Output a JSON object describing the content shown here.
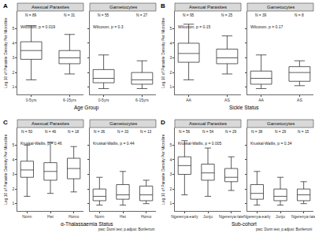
{
  "chart_data": [
    {
      "type": "box",
      "title": "A",
      "xlabel": "Age Group",
      "ylabel": "Log 10 of Parasite Density Per Microlitre",
      "ylim": [
        0.5,
        6.2
      ],
      "yticks": [
        1,
        2,
        3,
        4,
        5
      ],
      "color": "#333333",
      "panels": [
        {
          "title": "Asexual Parasites",
          "test": "Wilcoxon, p = 0.019",
          "categories": [
            "0-5yrs",
            "6-15yrs"
          ],
          "n_labels": [
            "N = 89",
            "N = 31"
          ],
          "q1": [
            2.9,
            2.6
          ],
          "median": [
            3.5,
            3.0
          ],
          "q3": [
            4.1,
            3.5
          ],
          "lowerfence": [
            1.5,
            1.9
          ],
          "upperfence": [
            5.2,
            4.6
          ]
        },
        {
          "title": "Gametocytes",
          "test": "Wilcoxon, p = 0.3",
          "categories": [
            "0-5yrs",
            "6-15yrs"
          ],
          "n_labels": [
            "N = 55",
            "N = 27"
          ],
          "q1": [
            1.3,
            1.2
          ],
          "median": [
            1.6,
            1.5
          ],
          "q3": [
            2.2,
            2.0
          ],
          "lowerfence": [
            0.9,
            0.9
          ],
          "upperfence": [
            3.2,
            2.8
          ]
        }
      ]
    },
    {
      "type": "box",
      "title": "B",
      "xlabel": "Sickle Status",
      "ylabel": "Log 10 of Parasite Density Per Microlitre",
      "ylim": [
        0.5,
        6.2
      ],
      "yticks": [
        1,
        2,
        3,
        4,
        5
      ],
      "color": "#333333",
      "panels": [
        {
          "title": "Asexual Parasites",
          "test": "Wilcoxon, p = 0.15",
          "categories": [
            "AA",
            "AS"
          ],
          "n_labels": [
            "N = 95",
            "N = 25"
          ],
          "q1": [
            2.7,
            2.6
          ],
          "median": [
            3.3,
            3.0
          ],
          "q3": [
            4.0,
            3.6
          ],
          "lowerfence": [
            1.5,
            1.9
          ],
          "upperfence": [
            5.3,
            4.5
          ]
        },
        {
          "title": "Gametocytes",
          "test": "Wilcoxon, p = 0.17",
          "categories": [
            "AA",
            "AS"
          ],
          "n_labels": [
            "N = 39",
            "N = 8"
          ],
          "q1": [
            1.2,
            1.4
          ],
          "median": [
            1.6,
            2.0
          ],
          "q3": [
            2.1,
            2.4
          ],
          "lowerfence": [
            0.9,
            1.1
          ],
          "upperfence": [
            3.2,
            2.8
          ]
        }
      ]
    },
    {
      "type": "box",
      "title": "C",
      "xlabel": "α-Thalassaemia Status",
      "ylabel": "Log 10 of Parasite Density Per Microlitre",
      "ylim": [
        0.5,
        6.2
      ],
      "yticks": [
        1,
        2,
        3,
        4,
        5
      ],
      "color": "#333333",
      "footnote": "pwc: Dunn test; p.adjust: Bonferroni",
      "panels": [
        {
          "title": "Asexual Parasites",
          "test": "Kruskal-Wallis, p = 0.46",
          "categories": [
            "Norm",
            "Het",
            "Homo"
          ],
          "n_labels": [
            "N = 50",
            "N = 46",
            "N = 18"
          ],
          "q1": [
            2.8,
            2.6,
            2.7
          ],
          "median": [
            3.3,
            3.2,
            3.4
          ],
          "q3": [
            3.9,
            3.8,
            4.1
          ],
          "lowerfence": [
            1.5,
            1.7,
            1.8
          ],
          "upperfence": [
            5.0,
            5.2,
            4.9
          ]
        },
        {
          "title": "Gametocytes",
          "test": "Kruskal-Wallis, p = 0.44",
          "categories": [
            "Norm",
            "Het",
            "Homo"
          ],
          "n_labels": [
            "N = 36",
            "N = 33",
            "N = 13"
          ],
          "q1": [
            1.2,
            1.3,
            1.2
          ],
          "median": [
            1.5,
            1.6,
            1.6
          ],
          "q3": [
            2.0,
            2.3,
            2.2
          ],
          "lowerfence": [
            0.9,
            0.9,
            1.0
          ],
          "upperfence": [
            2.8,
            3.2,
            2.6
          ]
        }
      ]
    },
    {
      "type": "box",
      "title": "D",
      "xlabel": "Sub-cohort",
      "ylabel": "Log 10 of Parasite Density Per Microlitre",
      "ylim": [
        0.5,
        6.2
      ],
      "yticks": [
        1,
        2,
        3,
        4,
        5
      ],
      "color": "#333333",
      "footnote": "pwc: Dunn test; p.adjust: Bonferroni",
      "panels": [
        {
          "title": "Asexual Parasites",
          "test": "Kruskal-Wallis, p = 0.005",
          "categories": [
            "Ngerenya-early",
            "Junju",
            "Ngerenya-late"
          ],
          "n_labels": [
            "N = 56",
            "N = 54",
            "N = 29"
          ],
          "q1": [
            3.0,
            2.6,
            2.5
          ],
          "median": [
            3.6,
            3.1,
            2.8
          ],
          "q3": [
            4.2,
            3.7,
            3.4
          ],
          "lowerfence": [
            1.6,
            1.5,
            1.9
          ],
          "upperfence": [
            5.3,
            4.8,
            4.2
          ]
        },
        {
          "title": "Gametocytes",
          "test": "Kruskal-Wallis, p = 0.34",
          "categories": [
            "Ngerenya-early",
            "Junju",
            "Ngerenya-late"
          ],
          "n_labels": [
            "N = 38",
            "N = 29",
            "N = 15"
          ],
          "q1": [
            1.3,
            1.2,
            1.2
          ],
          "median": [
            1.7,
            1.5,
            1.6
          ],
          "q3": [
            2.3,
            2.0,
            2.0
          ],
          "lowerfence": [
            0.9,
            0.9,
            1.0
          ],
          "upperfence": [
            3.2,
            2.8,
            2.5
          ]
        }
      ]
    }
  ]
}
